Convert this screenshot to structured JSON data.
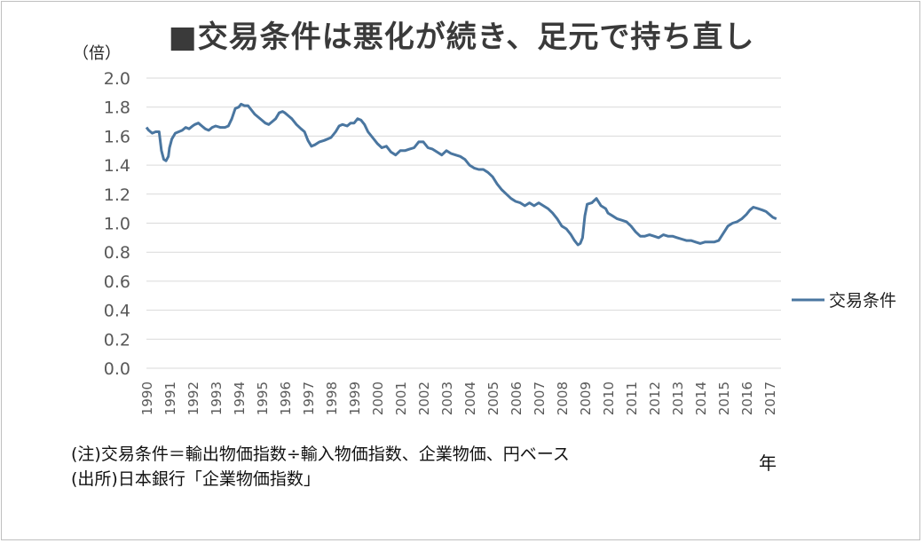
{
  "chart_title": "■交易条件は悪化が続き、足元で持ち直し",
  "unit_label": "（倍）",
  "x_unit_label": "年",
  "notes": {
    "line1": "(注)交易条件＝輸出物価指数÷輸入物価指数、企業物価、円ベース",
    "line2": "(出所)日本銀行「企業物価指数」"
  },
  "colors": {
    "series": "#4a76a0",
    "grid": "#d9d9d9",
    "axis_text": "#595959"
  },
  "chart_data": {
    "type": "line",
    "title": "交易条件は悪化が続き、足元で持ち直し",
    "ylabel": "（倍）",
    "xlabel": "年",
    "ylim": [
      0,
      2.0
    ],
    "yticks": [
      "0.0",
      "0.2",
      "0.4",
      "0.6",
      "0.8",
      "1.0",
      "1.2",
      "1.4",
      "1.6",
      "1.8",
      "2.0"
    ],
    "x_tick_labels": [
      "1990",
      "1991",
      "1992",
      "1993",
      "1994",
      "1995",
      "1996",
      "1997",
      "1998",
      "1999",
      "2000",
      "2001",
      "2002",
      "2003",
      "2004",
      "2005",
      "2006",
      "2007",
      "2008",
      "2009",
      "2010",
      "2011",
      "2012",
      "2013",
      "2014",
      "2015",
      "2016",
      "2017"
    ],
    "grid": true,
    "legend_position": "right",
    "series": [
      {
        "name": "交易条件",
        "x": [
          1990.0,
          1990.1,
          1990.25,
          1990.4,
          1990.55,
          1990.65,
          1990.75,
          1990.85,
          1990.95,
          1991.0,
          1991.1,
          1991.25,
          1991.4,
          1991.55,
          1991.7,
          1991.85,
          1992.0,
          1992.1,
          1992.25,
          1992.4,
          1992.55,
          1992.7,
          1992.85,
          1993.0,
          1993.2,
          1993.4,
          1993.55,
          1993.7,
          1993.85,
          1994.0,
          1994.1,
          1994.25,
          1994.4,
          1994.55,
          1994.7,
          1994.85,
          1995.0,
          1995.15,
          1995.3,
          1995.45,
          1995.6,
          1995.75,
          1995.9,
          1996.0,
          1996.15,
          1996.3,
          1996.5,
          1996.7,
          1996.85,
          1997.0,
          1997.15,
          1997.3,
          1997.5,
          1997.7,
          1997.85,
          1998.0,
          1998.2,
          1998.35,
          1998.5,
          1998.7,
          1998.85,
          1999.0,
          1999.15,
          1999.3,
          1999.45,
          1999.6,
          1999.8,
          2000.0,
          2000.2,
          2000.4,
          2000.6,
          2000.8,
          2001.0,
          2001.2,
          2001.4,
          2001.6,
          2001.8,
          2002.0,
          2002.2,
          2002.4,
          2002.6,
          2002.8,
          2003.0,
          2003.2,
          2003.4,
          2003.6,
          2003.8,
          2004.0,
          2004.2,
          2004.4,
          2004.6,
          2004.8,
          2005.0,
          2005.2,
          2005.4,
          2005.6,
          2005.8,
          2006.0,
          2006.2,
          2006.4,
          2006.6,
          2006.8,
          2007.0,
          2007.2,
          2007.4,
          2007.6,
          2007.8,
          2008.0,
          2008.2,
          2008.4,
          2008.55,
          2008.7,
          2008.8,
          2008.9,
          2009.0,
          2009.1,
          2009.3,
          2009.5,
          2009.7,
          2009.9,
          2010.0,
          2010.2,
          2010.4,
          2010.6,
          2010.8,
          2011.0,
          2011.2,
          2011.4,
          2011.6,
          2011.8,
          2012.0,
          2012.2,
          2012.4,
          2012.6,
          2012.8,
          2013.0,
          2013.2,
          2013.4,
          2013.6,
          2013.8,
          2014.0,
          2014.2,
          2014.4,
          2014.6,
          2014.8,
          2015.0,
          2015.2,
          2015.4,
          2015.6,
          2015.8,
          2016.0,
          2016.15,
          2016.3,
          2016.5,
          2016.7,
          2016.85,
          2017.0,
          2017.15,
          2017.3
        ],
        "values": [
          1.66,
          1.64,
          1.62,
          1.63,
          1.63,
          1.5,
          1.44,
          1.43,
          1.46,
          1.52,
          1.58,
          1.62,
          1.63,
          1.64,
          1.66,
          1.65,
          1.67,
          1.68,
          1.69,
          1.67,
          1.65,
          1.64,
          1.66,
          1.67,
          1.66,
          1.66,
          1.67,
          1.72,
          1.79,
          1.8,
          1.82,
          1.81,
          1.81,
          1.78,
          1.75,
          1.73,
          1.71,
          1.69,
          1.68,
          1.7,
          1.72,
          1.76,
          1.77,
          1.76,
          1.74,
          1.72,
          1.68,
          1.65,
          1.63,
          1.57,
          1.53,
          1.54,
          1.56,
          1.57,
          1.58,
          1.59,
          1.63,
          1.67,
          1.68,
          1.67,
          1.69,
          1.69,
          1.72,
          1.71,
          1.68,
          1.63,
          1.59,
          1.55,
          1.52,
          1.53,
          1.49,
          1.47,
          1.5,
          1.5,
          1.51,
          1.52,
          1.56,
          1.56,
          1.52,
          1.51,
          1.49,
          1.47,
          1.5,
          1.48,
          1.47,
          1.46,
          1.44,
          1.4,
          1.38,
          1.37,
          1.37,
          1.35,
          1.32,
          1.27,
          1.23,
          1.2,
          1.17,
          1.15,
          1.14,
          1.12,
          1.14,
          1.12,
          1.14,
          1.12,
          1.1,
          1.07,
          1.03,
          0.98,
          0.96,
          0.92,
          0.88,
          0.85,
          0.86,
          0.9,
          1.05,
          1.13,
          1.14,
          1.17,
          1.12,
          1.1,
          1.07,
          1.05,
          1.03,
          1.02,
          1.01,
          0.98,
          0.94,
          0.91,
          0.91,
          0.92,
          0.91,
          0.9,
          0.92,
          0.91,
          0.91,
          0.9,
          0.89,
          0.88,
          0.88,
          0.87,
          0.86,
          0.87,
          0.87,
          0.87,
          0.88,
          0.93,
          0.98,
          1.0,
          1.01,
          1.03,
          1.06,
          1.09,
          1.11,
          1.1,
          1.09,
          1.08,
          1.06,
          1.04,
          1.03
        ]
      }
    ]
  }
}
